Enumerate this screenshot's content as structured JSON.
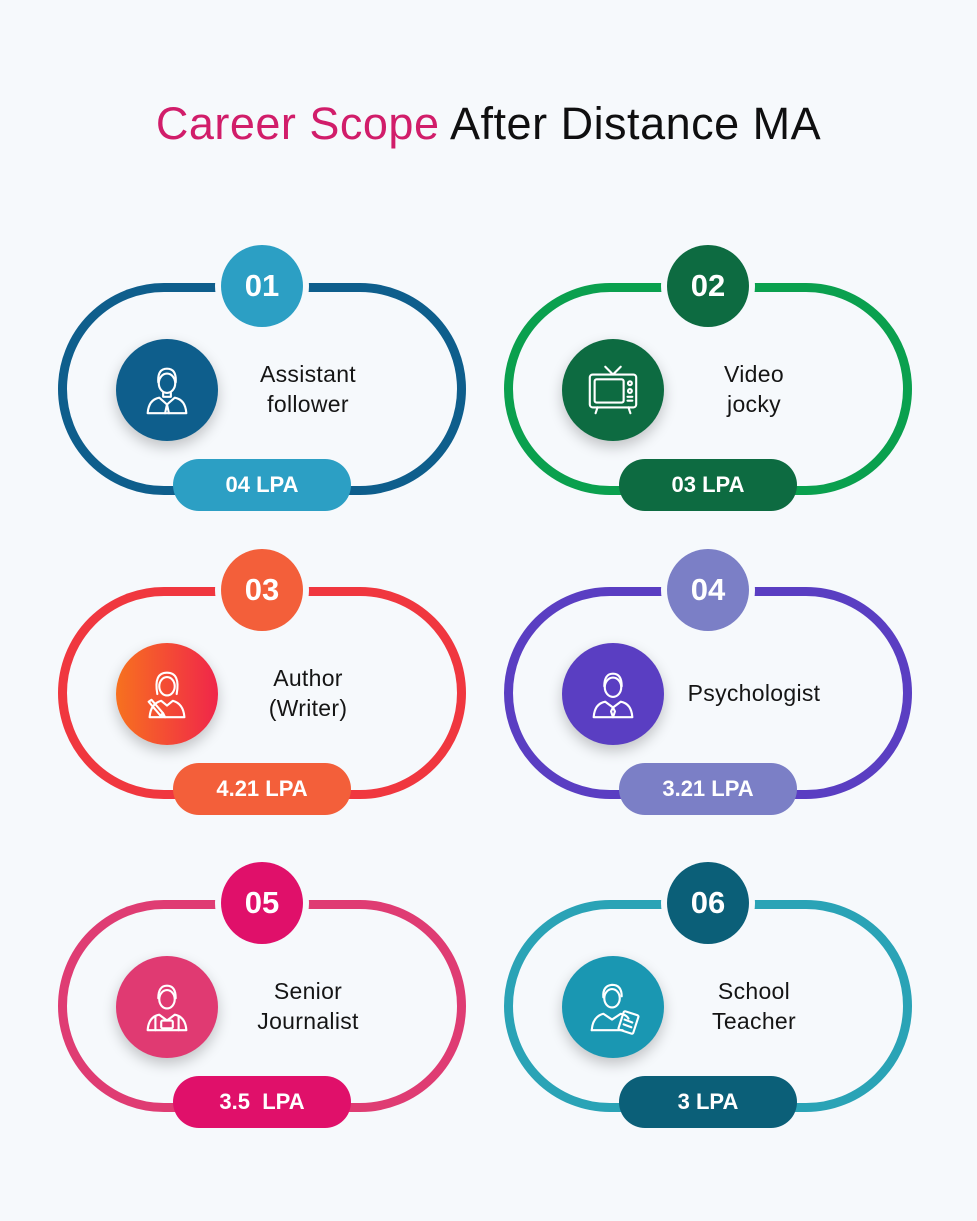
{
  "title": {
    "accent": "Career Scope",
    "rest": "After Distance MA"
  },
  "colors": {
    "accent": "#d11d6a"
  },
  "careers": [
    {
      "number": "01",
      "line1": "Assistant",
      "line2": "follower",
      "salary": "04 LPA",
      "icon": "male-professional-icon",
      "ring": "#0e5e8c",
      "badge": "#2c9fc4",
      "iconBg": "#0e5e8c",
      "pill": "#2c9fc4"
    },
    {
      "number": "02",
      "line1": "Video",
      "line2": "jocky",
      "salary": "03 LPA",
      "icon": "television-icon",
      "ring": "#0aa04e",
      "badge": "#0d6b41",
      "iconBg": "#0d6b41",
      "pill": "#0d6b41"
    },
    {
      "number": "03",
      "line1": "Author",
      "line2": "(Writer)",
      "salary": "4.21 LPA",
      "icon": "female-writer-icon",
      "ring": "#f0373f",
      "badge": "#f35f3a",
      "iconBg": "#f6582d",
      "pill": "#f35f3a"
    },
    {
      "number": "04",
      "line1": "Psychologist",
      "line2": "",
      "salary": "3.21 LPA",
      "icon": "psychologist-icon",
      "ring": "#5a3ec2",
      "badge": "#7b7fc6",
      "iconBg": "#5a3ec2",
      "pill": "#7b7fc6"
    },
    {
      "number": "05",
      "line1": "Senior",
      "line2": "Journalist",
      "salary": "3.5  LPA",
      "icon": "journalist-icon",
      "ring": "#df3c73",
      "badge": "#e0106a",
      "iconBg": "#e03a72",
      "pill": "#e0106a"
    },
    {
      "number": "06",
      "line1": "School",
      "line2": "Teacher",
      "salary": "3 LPA",
      "icon": "teacher-icon",
      "ring": "#2aa3b6",
      "badge": "#0b5f78",
      "iconBg": "#1a97b2",
      "pill": "#0b5f78"
    }
  ]
}
